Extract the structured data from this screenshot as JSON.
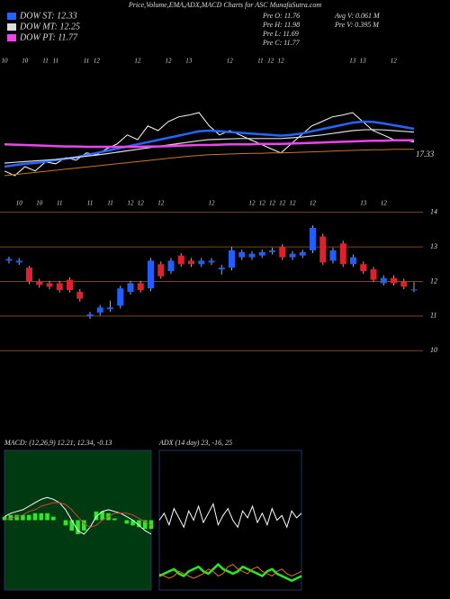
{
  "header": {
    "title": "Price,Volume,EMA,ADX,MACD Charts for ASC MunafaSutra.com",
    "info": [
      "Pre  O: 11.76",
      "Pre  H: 11.98",
      "Pre  L: 11.69",
      "Pre  C: 11.77",
      "Avg  V: 0.061 M",
      "Pre  V: 0.395 M"
    ]
  },
  "chart_data": [
    {
      "type": "line",
      "categories": [
        "10",
        null,
        "10",
        null,
        "11",
        "11",
        null,
        null,
        "11",
        "12",
        null,
        null,
        null,
        "12",
        null,
        null,
        "12",
        null,
        "13",
        null,
        null,
        null,
        "12",
        null,
        null,
        "11",
        "12",
        "12",
        null,
        null,
        null,
        null,
        null,
        null,
        "13",
        "13",
        null,
        null,
        "12",
        null,
        null
      ],
      "annotation": "17.33",
      "ylim": [
        10,
        14
      ],
      "series": [
        {
          "color": "#ffffff",
          "width": 1,
          "values": [
            10.88,
            10.75,
            11.0,
            10.88,
            11.13,
            11.08,
            11.25,
            11.18,
            11.38,
            11.33,
            11.5,
            11.63,
            11.88,
            11.75,
            12.13,
            12.0,
            12.25,
            12.38,
            12.43,
            12.5,
            12.13,
            11.88,
            12.0,
            11.88,
            11.75,
            11.63,
            11.5,
            11.38,
            11.63,
            11.88,
            12.13,
            12.25,
            12.38,
            12.43,
            12.5,
            12.25,
            12.0,
            11.88,
            11.75,
            11.75,
            11.68
          ]
        },
        {
          "name": "DOW ST: 12.33",
          "color": "#2266ff",
          "width": 2.5,
          "values": [
            11.0,
            11.04,
            11.08,
            11.1,
            11.14,
            11.18,
            11.22,
            11.26,
            11.32,
            11.38,
            11.44,
            11.5,
            11.56,
            11.62,
            11.68,
            11.74,
            11.8,
            11.86,
            11.92,
            11.98,
            12.0,
            11.98,
            11.96,
            11.94,
            11.92,
            11.9,
            11.88,
            11.86,
            11.88,
            11.92,
            11.98,
            12.04,
            12.1,
            12.16,
            12.22,
            12.25,
            12.24,
            12.2,
            12.15,
            12.1,
            12.05
          ]
        },
        {
          "name": "DOW MT: 12.25",
          "color": "#dddddd",
          "width": 1.2,
          "values": [
            11.1,
            11.12,
            11.14,
            11.16,
            11.18,
            11.2,
            11.23,
            11.26,
            11.29,
            11.32,
            11.36,
            11.4,
            11.44,
            11.48,
            11.52,
            11.56,
            11.6,
            11.64,
            11.68,
            11.72,
            11.75,
            11.76,
            11.77,
            11.78,
            11.78,
            11.78,
            11.78,
            11.78,
            11.8,
            11.82,
            11.85,
            11.88,
            11.92,
            11.96,
            12.0,
            12.02,
            12.03,
            12.02,
            12.0,
            11.98,
            11.96
          ]
        },
        {
          "name": "DOW PT: 11.77",
          "color": "#ee44ee",
          "width": 2.5,
          "values": [
            11.62,
            11.61,
            11.6,
            11.59,
            11.58,
            11.57,
            11.56,
            11.56,
            11.55,
            11.55,
            11.55,
            11.55,
            11.55,
            11.55,
            11.56,
            11.56,
            11.57,
            11.58,
            11.59,
            11.6,
            11.6,
            11.61,
            11.62,
            11.62,
            11.62,
            11.63,
            11.63,
            11.63,
            11.64,
            11.65,
            11.66,
            11.67,
            11.68,
            11.69,
            11.7,
            11.71,
            11.72,
            11.72,
            11.73,
            11.73,
            11.73
          ]
        },
        {
          "color": "#cc7722",
          "width": 1,
          "values": [
            10.75,
            10.78,
            10.81,
            10.84,
            10.87,
            10.9,
            10.93,
            10.96,
            10.99,
            11.02,
            11.05,
            11.08,
            11.11,
            11.14,
            11.17,
            11.2,
            11.23,
            11.26,
            11.29,
            11.31,
            11.33,
            11.34,
            11.35,
            11.36,
            11.37,
            11.37,
            11.38,
            11.38,
            11.39,
            11.4,
            11.41,
            11.42,
            11.43,
            11.44,
            11.45,
            11.46,
            11.47,
            11.47,
            11.48,
            11.48,
            11.48
          ]
        }
      ]
    },
    {
      "type": "candlestick",
      "categories": [
        null,
        "10",
        null,
        "10",
        null,
        "11",
        null,
        null,
        "11",
        null,
        "11",
        null,
        "12",
        "12",
        null,
        "12",
        null,
        null,
        null,
        null,
        "12",
        null,
        null,
        null,
        "12",
        "12",
        "12",
        "12",
        "12",
        null,
        "12",
        null,
        null,
        null,
        null,
        "13",
        null,
        "12",
        null,
        null,
        null
      ],
      "up_color": "#1f5fff",
      "down_color": "#e0202a",
      "grid_color": "#7a4a10",
      "ylim": [
        9.8,
        14.2
      ],
      "yticks": [
        14,
        13,
        12,
        11,
        10
      ],
      "open": [
        12.6,
        12.55,
        12.4,
        12.0,
        11.95,
        11.95,
        12.05,
        11.7,
        11.0,
        11.1,
        11.2,
        11.3,
        11.7,
        11.95,
        11.8,
        12.5,
        12.3,
        12.75,
        12.6,
        12.5,
        12.55,
        12.35,
        12.4,
        12.7,
        12.7,
        12.75,
        12.85,
        13.0,
        12.7,
        12.75,
        12.9,
        13.3,
        12.6,
        13.1,
        12.5,
        12.5,
        12.35,
        11.95,
        12.1,
        12.0,
        11.76
      ],
      "close": [
        12.65,
        12.6,
        12.0,
        11.9,
        11.85,
        11.75,
        11.75,
        11.5,
        11.05,
        11.25,
        11.25,
        11.8,
        11.95,
        11.75,
        12.6,
        12.15,
        12.6,
        12.5,
        12.5,
        12.6,
        12.6,
        12.4,
        12.9,
        12.85,
        12.8,
        12.85,
        12.9,
        12.7,
        12.8,
        12.85,
        13.55,
        12.55,
        12.9,
        12.5,
        12.7,
        12.3,
        12.05,
        12.1,
        11.95,
        11.85,
        11.77
      ],
      "high": [
        12.72,
        12.68,
        12.45,
        12.08,
        12.02,
        12.02,
        12.12,
        11.78,
        11.12,
        11.32,
        11.45,
        11.88,
        12.02,
        12.02,
        12.68,
        12.58,
        12.68,
        12.82,
        12.68,
        12.68,
        12.68,
        12.48,
        13.0,
        12.92,
        12.88,
        12.92,
        12.98,
        13.08,
        12.88,
        12.92,
        13.62,
        13.38,
        12.98,
        13.18,
        12.78,
        12.58,
        12.42,
        12.18,
        12.18,
        12.08,
        11.98
      ],
      "low": [
        12.52,
        12.48,
        11.92,
        11.82,
        11.78,
        11.68,
        11.68,
        11.42,
        10.92,
        11.02,
        11.12,
        11.22,
        11.62,
        11.68,
        11.72,
        12.08,
        12.22,
        12.42,
        12.42,
        12.42,
        12.48,
        12.2,
        12.32,
        12.62,
        12.62,
        12.68,
        12.78,
        12.62,
        12.62,
        12.68,
        12.82,
        12.48,
        12.52,
        12.42,
        12.42,
        12.22,
        11.98,
        11.88,
        11.88,
        11.78,
        11.69
      ]
    },
    {
      "type": "line",
      "title": "MACD: (12,26,9) 12.21, 12.34, -0.13",
      "background": "#003a10",
      "ylim": [
        -0.4,
        0.4
      ],
      "series": [
        {
          "style": "bar",
          "color": "#22ee22",
          "values": [
            0.02,
            0.03,
            0.03,
            0.03,
            0.03,
            0.04,
            0.04,
            0.04,
            0.02,
            0.0,
            -0.03,
            -0.06,
            -0.08,
            -0.06,
            0.0,
            0.05,
            0.05,
            0.04,
            0.01,
            0.0,
            -0.02,
            -0.03,
            -0.04,
            -0.05,
            -0.05
          ]
        },
        {
          "color": "#ffffff",
          "width": 1,
          "values": [
            0.02,
            0.04,
            0.05,
            0.06,
            0.08,
            0.1,
            0.12,
            0.13,
            0.12,
            0.1,
            0.06,
            0.0,
            -0.06,
            -0.08,
            -0.04,
            0.02,
            0.05,
            0.06,
            0.05,
            0.04,
            0.02,
            0.0,
            -0.03,
            -0.06,
            -0.08
          ]
        },
        {
          "color": "#cc4444",
          "width": 1,
          "values": [
            0.0,
            0.01,
            0.02,
            0.03,
            0.05,
            0.06,
            0.08,
            0.09,
            0.1,
            0.1,
            0.09,
            0.06,
            0.02,
            -0.02,
            -0.04,
            -0.03,
            0.0,
            0.02,
            0.04,
            0.04,
            0.04,
            0.03,
            0.01,
            -0.01,
            -0.03
          ]
        }
      ]
    },
    {
      "type": "line",
      "title": "ADX    (14 day) 23, -16, 25",
      "background": "#000000",
      "ylim": [
        0,
        60
      ],
      "series": [
        {
          "color": "#ffffff",
          "width": 1,
          "values": [
            30,
            33,
            28,
            35,
            31,
            27,
            34,
            30,
            36,
            29,
            33,
            37,
            28,
            32,
            35,
            30,
            27,
            34,
            31,
            36,
            29,
            33,
            28,
            35,
            30,
            32,
            27,
            34,
            31,
            33
          ]
        },
        {
          "color": "#22ee22",
          "width": 2.5,
          "values": [
            6,
            7,
            8,
            9,
            7,
            6,
            8,
            9,
            10,
            8,
            7,
            9,
            11,
            9,
            8,
            7,
            8,
            10,
            9,
            8,
            7,
            6,
            8,
            9,
            7,
            6,
            5,
            4,
            5,
            6
          ]
        },
        {
          "color": "#dd7722",
          "width": 1,
          "values": [
            7,
            6,
            5,
            6,
            8,
            7,
            6,
            5,
            6,
            7,
            9,
            8,
            6,
            7,
            10,
            11,
            9,
            8,
            7,
            9,
            10,
            8,
            7,
            6,
            8,
            9,
            7,
            6,
            7,
            8
          ]
        }
      ]
    }
  ]
}
